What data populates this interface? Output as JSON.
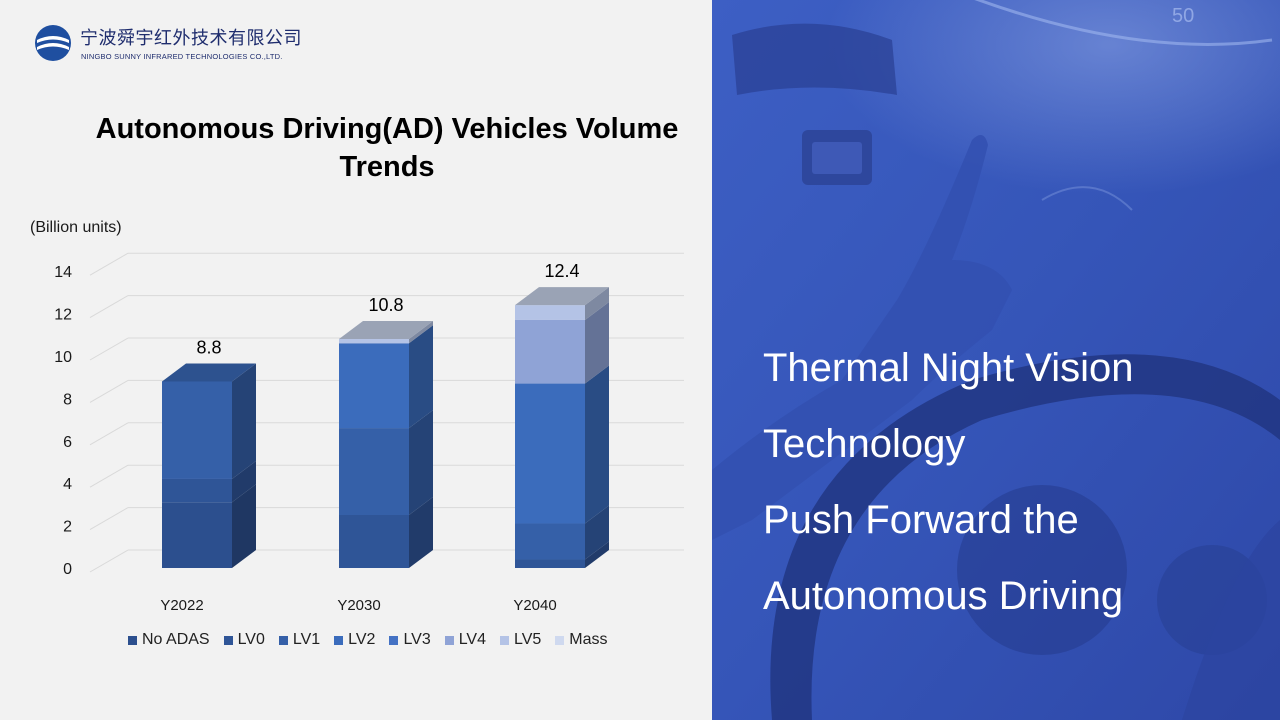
{
  "logo": {
    "name_cn": "宁波舜宇红外技术有限公司",
    "name_en": "NINGBO SUNNY INFRARED TECHNOLOGIES CO.,LTD."
  },
  "chart_data": {
    "type": "bar",
    "stacked": true,
    "title": "Autonomous Driving(AD) Vehicles Volume Trends",
    "ylabel": "(Billion units)",
    "categories": [
      "Y2022",
      "Y2030",
      "Y2040"
    ],
    "ylim": [
      0,
      14
    ],
    "yticks": [
      0,
      2,
      4,
      6,
      8,
      10,
      12,
      14
    ],
    "totals": [
      "8.8",
      "10.8",
      "12.4"
    ],
    "legend_position": "bottom",
    "series": [
      {
        "name": "No ADAS",
        "color": "#2c4f8e",
        "values": [
          3.1,
          0.0,
          0.0
        ]
      },
      {
        "name": "LV0",
        "color": "#2f5597",
        "values": [
          1.1,
          2.5,
          0.4
        ]
      },
      {
        "name": "LV1",
        "color": "#3560a8",
        "values": [
          4.6,
          4.1,
          1.7
        ]
      },
      {
        "name": "LV2",
        "color": "#3b6cbc",
        "values": [
          0.0,
          4.0,
          6.6
        ]
      },
      {
        "name": "LV3",
        "color": "#4472c4",
        "values": [
          0.0,
          0.0,
          0.0
        ]
      },
      {
        "name": "LV4",
        "color": "#8fa3d6",
        "values": [
          0.0,
          0.0,
          3.0
        ]
      },
      {
        "name": "LV5",
        "color": "#b4c3e6",
        "values": [
          0.0,
          0.2,
          0.7
        ]
      },
      {
        "name": "Mass",
        "color": "#cfd9ef",
        "values": [
          0.0,
          0.0,
          0.0
        ]
      }
    ]
  },
  "headline": {
    "line1": "Thermal Night Vision",
    "line2": "Technology",
    "line3": "Push Forward the",
    "line4": "Autonomous Driving"
  },
  "colors": {
    "brand_navy": "#1f2d6e",
    "right_panel_blue": "#3a5bbf",
    "background": "#f2f2f2"
  }
}
